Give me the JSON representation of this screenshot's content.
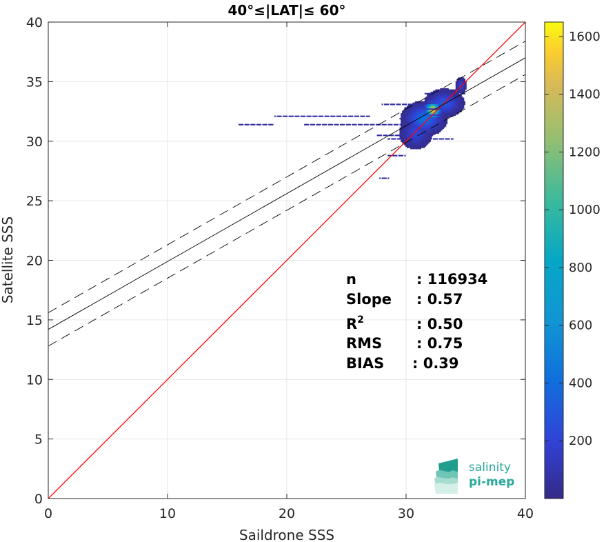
{
  "chart_data": {
    "type": "heatmap",
    "title": "40°≤|LAT|≤ 60°",
    "xlabel": "Saildrone SSS",
    "ylabel": "Satellite SSS",
    "xlim": [
      0,
      40
    ],
    "ylim": [
      0,
      40
    ],
    "xticks": [
      "0",
      "10",
      "20",
      "30",
      "40"
    ],
    "yticks": [
      "0",
      "5",
      "10",
      "15",
      "20",
      "25",
      "30",
      "35",
      "40"
    ],
    "grid": true,
    "colorbar": {
      "colormap": "parula",
      "range": [
        0,
        1650
      ],
      "ticks": [
        "200",
        "400",
        "600",
        "800",
        "1000",
        "1200",
        "1400",
        "1600"
      ]
    },
    "lines": [
      {
        "kind": "one-to-one",
        "color": "#ff0000",
        "style": "solid",
        "slope": 1.0,
        "intercept": 0.0
      },
      {
        "kind": "fit",
        "color": "#000000",
        "style": "solid",
        "slope": 0.57,
        "intercept": 14.2
      },
      {
        "kind": "fit-upper",
        "color": "#000000",
        "style": "dashed",
        "slope": 0.57,
        "intercept": 15.6
      },
      {
        "kind": "fit-lower",
        "color": "#000000",
        "style": "dashed",
        "slope": 0.57,
        "intercept": 12.8
      }
    ],
    "density_blobs": [
      {
        "x": 32.2,
        "y": 32.6,
        "sx": 0.35,
        "sy": 0.35,
        "count": 1600
      },
      {
        "x": 31.5,
        "y": 31.9,
        "sx": 0.8,
        "sy": 0.6,
        "count": 420
      },
      {
        "x": 33.2,
        "y": 33.2,
        "sx": 0.7,
        "sy": 0.5,
        "count": 300
      },
      {
        "x": 30.8,
        "y": 30.7,
        "sx": 0.6,
        "sy": 0.6,
        "count": 220
      },
      {
        "x": 34.6,
        "y": 34.7,
        "sx": 0.2,
        "sy": 0.3,
        "count": 200
      }
    ],
    "sparse_segments": [
      {
        "x0": 19.0,
        "x1": 27.0,
        "y": 32.1,
        "count": 60
      },
      {
        "x0": 16.0,
        "x1": 19.0,
        "y": 31.4,
        "count": 40
      },
      {
        "x0": 21.5,
        "x1": 31.0,
        "y": 31.4,
        "count": 70
      },
      {
        "x0": 28.0,
        "x1": 32.0,
        "y": 33.1,
        "count": 60
      },
      {
        "x0": 28.5,
        "x1": 34.0,
        "y": 30.2,
        "count": 80
      },
      {
        "x0": 27.5,
        "x1": 32.0,
        "y": 30.5,
        "count": 70
      },
      {
        "x0": 28.5,
        "x1": 30.0,
        "y": 28.8,
        "count": 60
      },
      {
        "x0": 27.8,
        "x1": 28.6,
        "y": 26.9,
        "count": 50
      },
      {
        "x0": 31.5,
        "x1": 35.0,
        "y": 34.0,
        "count": 80
      },
      {
        "x0": 32.5,
        "x1": 34.5,
        "y": 34.3,
        "count": 60
      }
    ]
  },
  "stats": [
    {
      "label": "n",
      "value": ": 116934"
    },
    {
      "label": "Slope",
      "value": ": 0.57"
    },
    {
      "label": "R",
      "sup": "2",
      "value": ": 0.50"
    },
    {
      "label": "RMS",
      "value": ": 0.75"
    },
    {
      "label": "BIAS",
      "value": ": 0.39"
    }
  ],
  "logo": {
    "line1": "salinity",
    "line2": "pi-mep"
  }
}
